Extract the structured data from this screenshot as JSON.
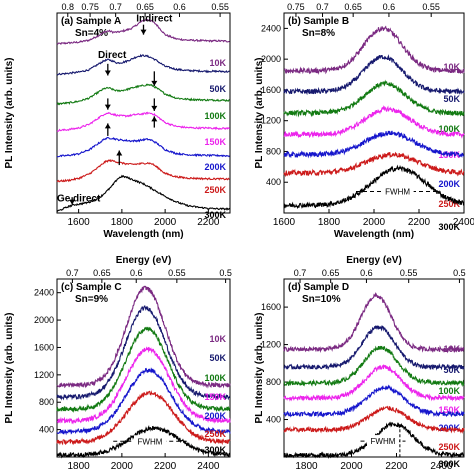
{
  "figure": {
    "background": "#ffffff",
    "temp_colors": {
      "10K": "#7b2a82",
      "50K": "#16196e",
      "100K": "#127a12",
      "150K": "#ec24ec",
      "200K": "#1616cc",
      "250K": "#cc1a1a",
      "300K": "#000000"
    }
  },
  "chart_data": [
    {
      "type": "line",
      "panel_label": "(a) Sample A",
      "composition": "Sn=4%",
      "xlabel": "Wavelength (nm)",
      "ylabel": "PL Intensity (arb. units)",
      "top_axis_label": "",
      "xlim": [
        1500,
        2300
      ],
      "ylim": [
        0,
        4800
      ],
      "x_ticks": [
        1600,
        1800,
        2000,
        2200
      ],
      "y_ticks": [],
      "top_ticks": [
        "0.8",
        "0.75",
        "0.7",
        "0.65",
        "0.6",
        "0.55"
      ],
      "top_tick_wavelengths": [
        1549.8,
        1653.1,
        1771.2,
        1907.4,
        2066.4,
        2254.2
      ],
      "annotations": [
        {
          "text": "Indirect",
          "x": 1950,
          "y": 4600
        },
        {
          "text": "Direct",
          "x": 1755,
          "y": 3720
        },
        {
          "text": "Ge direct",
          "x": 1600,
          "y": 280
        }
      ],
      "arrows": [
        {
          "x": 1735,
          "y1": 3580,
          "y2": 3300
        },
        {
          "x": 1900,
          "y1": 4520,
          "y2": 4280
        },
        {
          "x": 1735,
          "y1": 2750,
          "y2": 2480
        },
        {
          "x": 1735,
          "y1": 1850,
          "y2": 2150
        },
        {
          "x": 1788,
          "y1": 1150,
          "y2": 1500
        },
        {
          "x": 1950,
          "y1": 3400,
          "y2": 3050
        },
        {
          "x": 1950,
          "y1": 2750,
          "y2": 2450
        },
        {
          "x": 1950,
          "y1": 2050,
          "y2": 2320
        },
        {
          "x": 1570,
          "y1": 380,
          "y2": 200
        }
      ],
      "series": [
        {
          "name": "10K",
          "x": [
            1500,
            1550,
            1600,
            1650,
            1700,
            1720,
            1740,
            1760,
            1780,
            1800,
            1820,
            1840,
            1860,
            1880,
            1900,
            1920,
            1940,
            1960,
            1980,
            2000,
            2050,
            2100,
            2150,
            2200,
            2250,
            2300
          ],
          "y": [
            4060,
            4080,
            4100,
            4150,
            4280,
            4350,
            4370,
            4340,
            4340,
            4360,
            4390,
            4420,
            4480,
            4560,
            4620,
            4640,
            4600,
            4520,
            4400,
            4280,
            4180,
            4150,
            4140,
            4130,
            4130,
            4120
          ]
        },
        {
          "name": "50K",
          "x": [
            1500,
            1550,
            1600,
            1650,
            1700,
            1720,
            1740,
            1760,
            1780,
            1800,
            1820,
            1840,
            1860,
            1880,
            1900,
            1920,
            1940,
            1960,
            1980,
            2000,
            2050,
            2100,
            2150,
            2200,
            2250,
            2300
          ],
          "y": [
            3330,
            3350,
            3380,
            3440,
            3600,
            3660,
            3680,
            3640,
            3600,
            3610,
            3640,
            3680,
            3730,
            3770,
            3780,
            3760,
            3720,
            3660,
            3590,
            3520,
            3450,
            3420,
            3410,
            3400,
            3400,
            3390
          ]
        },
        {
          "name": "100K",
          "x": [
            1500,
            1550,
            1600,
            1650,
            1700,
            1720,
            1740,
            1760,
            1780,
            1800,
            1820,
            1840,
            1860,
            1880,
            1900,
            1920,
            1940,
            1960,
            1980,
            2000,
            2050,
            2100,
            2150,
            2200,
            2250,
            2300
          ],
          "y": [
            2620,
            2640,
            2680,
            2760,
            2930,
            2990,
            3000,
            2960,
            2930,
            2940,
            2960,
            2990,
            3020,
            3040,
            3060,
            3080,
            3060,
            3000,
            2930,
            2860,
            2760,
            2730,
            2720,
            2710,
            2710,
            2700
          ]
        },
        {
          "name": "150K",
          "x": [
            1500,
            1550,
            1600,
            1650,
            1700,
            1720,
            1740,
            1760,
            1780,
            1800,
            1820,
            1840,
            1860,
            1880,
            1900,
            1920,
            1940,
            1960,
            1980,
            2000,
            2050,
            2100,
            2150,
            2200,
            2250,
            2300
          ],
          "y": [
            1980,
            2000,
            2040,
            2130,
            2310,
            2380,
            2400,
            2370,
            2340,
            2330,
            2330,
            2340,
            2360,
            2370,
            2380,
            2400,
            2390,
            2330,
            2250,
            2170,
            2080,
            2050,
            2040,
            2040,
            2030,
            2030
          ]
        },
        {
          "name": "200K",
          "x": [
            1500,
            1550,
            1600,
            1650,
            1700,
            1720,
            1740,
            1760,
            1780,
            1800,
            1820,
            1840,
            1860,
            1880,
            1900,
            1920,
            1940,
            1960,
            1980,
            2000,
            2050,
            2100,
            2150,
            2200,
            2250,
            2300
          ],
          "y": [
            1360,
            1380,
            1420,
            1520,
            1700,
            1780,
            1800,
            1790,
            1760,
            1750,
            1740,
            1730,
            1730,
            1740,
            1760,
            1770,
            1740,
            1680,
            1600,
            1520,
            1430,
            1400,
            1390,
            1380,
            1380,
            1370
          ]
        },
        {
          "name": "250K",
          "x": [
            1500,
            1550,
            1600,
            1650,
            1700,
            1720,
            1740,
            1760,
            1780,
            1800,
            1820,
            1840,
            1860,
            1880,
            1900,
            1920,
            1940,
            1960,
            1980,
            2000,
            2050,
            2100,
            2150,
            2200,
            2250,
            2300
          ],
          "y": [
            760,
            780,
            830,
            940,
            1130,
            1220,
            1260,
            1250,
            1220,
            1200,
            1180,
            1170,
            1170,
            1180,
            1190,
            1200,
            1180,
            1110,
            1030,
            950,
            870,
            840,
            830,
            820,
            820,
            810
          ]
        },
        {
          "name": "300K",
          "x": [
            1500,
            1520,
            1550,
            1580,
            1600,
            1650,
            1700,
            1750,
            1780,
            1800,
            1820,
            1850,
            1900,
            1950,
            2000,
            2050,
            2100,
            2150,
            2200,
            2250,
            2300
          ],
          "y": [
            40,
            80,
            150,
            200,
            210,
            260,
            380,
            620,
            820,
            880,
            860,
            800,
            700,
            550,
            400,
            270,
            180,
            140,
            110,
            100,
            95
          ]
        }
      ]
    },
    {
      "type": "line",
      "panel_label": "(b) Sample B",
      "composition": "Sn=8%",
      "xlabel": "Wavelength (nm)",
      "ylabel": "PL Intensity (arb. units)",
      "top_axis_label": "",
      "xlim": [
        1600,
        2400
      ],
      "ylim": [
        0,
        2600
      ],
      "x_ticks": [
        1600,
        1800,
        2000,
        2200,
        2400
      ],
      "y_ticks": [
        400,
        800,
        1200,
        1600,
        2000,
        2400
      ],
      "top_ticks": [
        "0.75",
        "0.7",
        "0.65",
        "0.6",
        "0.55"
      ],
      "top_tick_wavelengths": [
        1653.1,
        1771.2,
        1907.4,
        2066.4,
        2254.2
      ],
      "fwhm": {
        "text": "FWHM",
        "x1": 1920,
        "x2": 2290,
        "y": 280
      },
      "series": [
        {
          "name": "10K",
          "peak": 2040,
          "width": 120,
          "base": 1850,
          "amp": 550,
          "tail": 0
        },
        {
          "name": "50K",
          "peak": 2040,
          "width": 120,
          "base": 1580,
          "amp": 450,
          "tail": 0
        },
        {
          "name": "100K",
          "peak": 2050,
          "width": 130,
          "base": 1300,
          "amp": 380,
          "tail": 0
        },
        {
          "name": "150K",
          "peak": 2060,
          "width": 140,
          "base": 1020,
          "amp": 330,
          "tail": 0
        },
        {
          "name": "200K",
          "peak": 2070,
          "width": 150,
          "base": 760,
          "amp": 280,
          "tail": 0
        },
        {
          "name": "250K",
          "peak": 2080,
          "width": 160,
          "base": 520,
          "amp": 240,
          "tail": 0
        },
        {
          "name": "300K",
          "peak": 2110,
          "width": 170,
          "base": 100,
          "amp": 480,
          "tail": 0
        }
      ]
    },
    {
      "type": "line",
      "panel_label": "(c) Sample C",
      "composition": "Sn=9%",
      "xlabel": "",
      "ylabel": "PL Intensity (arb. units)",
      "top_axis_label": "Energy (eV)",
      "xlim": [
        1700,
        2500
      ],
      "ylim": [
        0,
        2600
      ],
      "x_ticks": [
        1800,
        2000,
        2200,
        2400
      ],
      "y_ticks": [
        400,
        800,
        1200,
        1600,
        2000,
        2400
      ],
      "top_ticks": [
        "0.7",
        "0.65",
        "0.6",
        "0.55",
        "0.5"
      ],
      "top_tick_wavelengths": [
        1771.2,
        1907.4,
        2066.4,
        2254.2,
        2479.7
      ],
      "fwhm": {
        "text": "FWHM",
        "x1": 1960,
        "x2": 2300,
        "y": 230
      },
      "series": [
        {
          "name": "10K",
          "peak": 2110,
          "width": 125,
          "base": 1050,
          "amp": 1420,
          "tail": 0
        },
        {
          "name": "50K",
          "peak": 2110,
          "width": 130,
          "base": 880,
          "amp": 1300,
          "tail": 0
        },
        {
          "name": "100K",
          "peak": 2115,
          "width": 135,
          "base": 700,
          "amp": 1180,
          "tail": 0
        },
        {
          "name": "150K",
          "peak": 2120,
          "width": 140,
          "base": 530,
          "amp": 1050,
          "tail": 0
        },
        {
          "name": "200K",
          "peak": 2125,
          "width": 145,
          "base": 370,
          "amp": 900,
          "tail": 0
        },
        {
          "name": "250K",
          "peak": 2130,
          "width": 150,
          "base": 220,
          "amp": 720,
          "tail": 0
        },
        {
          "name": "300K",
          "peak": 2150,
          "width": 160,
          "base": 30,
          "amp": 390,
          "tail": 0
        }
      ]
    },
    {
      "type": "line",
      "panel_label": "(d) Sample D",
      "composition": "Sn=10%",
      "xlabel": "",
      "ylabel": "PL Intensity (arb. units)",
      "top_axis_label": "Energy (eV)",
      "xlim": [
        1700,
        2500
      ],
      "ylim": [
        0,
        1900
      ],
      "x_ticks": [
        1800,
        2000,
        2200,
        2400
      ],
      "y_ticks": [
        400,
        800,
        1200,
        1600
      ],
      "top_ticks": [
        "0.7",
        "0.65",
        "0.6",
        "0.55",
        "0.5"
      ],
      "top_tick_wavelengths": [
        1771.2,
        1907.4,
        2066.4,
        2254.2,
        2479.7
      ],
      "fwhm": {
        "text": "FWHM",
        "x1": 2040,
        "x2": 2240,
        "y": 170,
        "marker_x": 2215
      },
      "series": [
        {
          "name": "10K",
          "peak": 2110,
          "width": 95,
          "base": 1150,
          "amp": 570,
          "tail": 0
        },
        {
          "name": "50K",
          "peak": 2120,
          "width": 100,
          "base": 960,
          "amp": 430,
          "tail": 0
        },
        {
          "name": "100K",
          "peak": 2130,
          "width": 105,
          "base": 790,
          "amp": 380,
          "tail": 0
        },
        {
          "name": "150K",
          "peak": 2140,
          "width": 110,
          "base": 630,
          "amp": 330,
          "tail": 0
        },
        {
          "name": "200K",
          "peak": 2150,
          "width": 115,
          "base": 460,
          "amp": 280,
          "tail": 0
        },
        {
          "name": "250K",
          "peak": 2160,
          "width": 120,
          "base": 290,
          "amp": 230,
          "tail": 0
        },
        {
          "name": "300K",
          "peak": 2190,
          "width": 120,
          "base": 20,
          "amp": 330,
          "tail": 0
        }
      ]
    }
  ]
}
